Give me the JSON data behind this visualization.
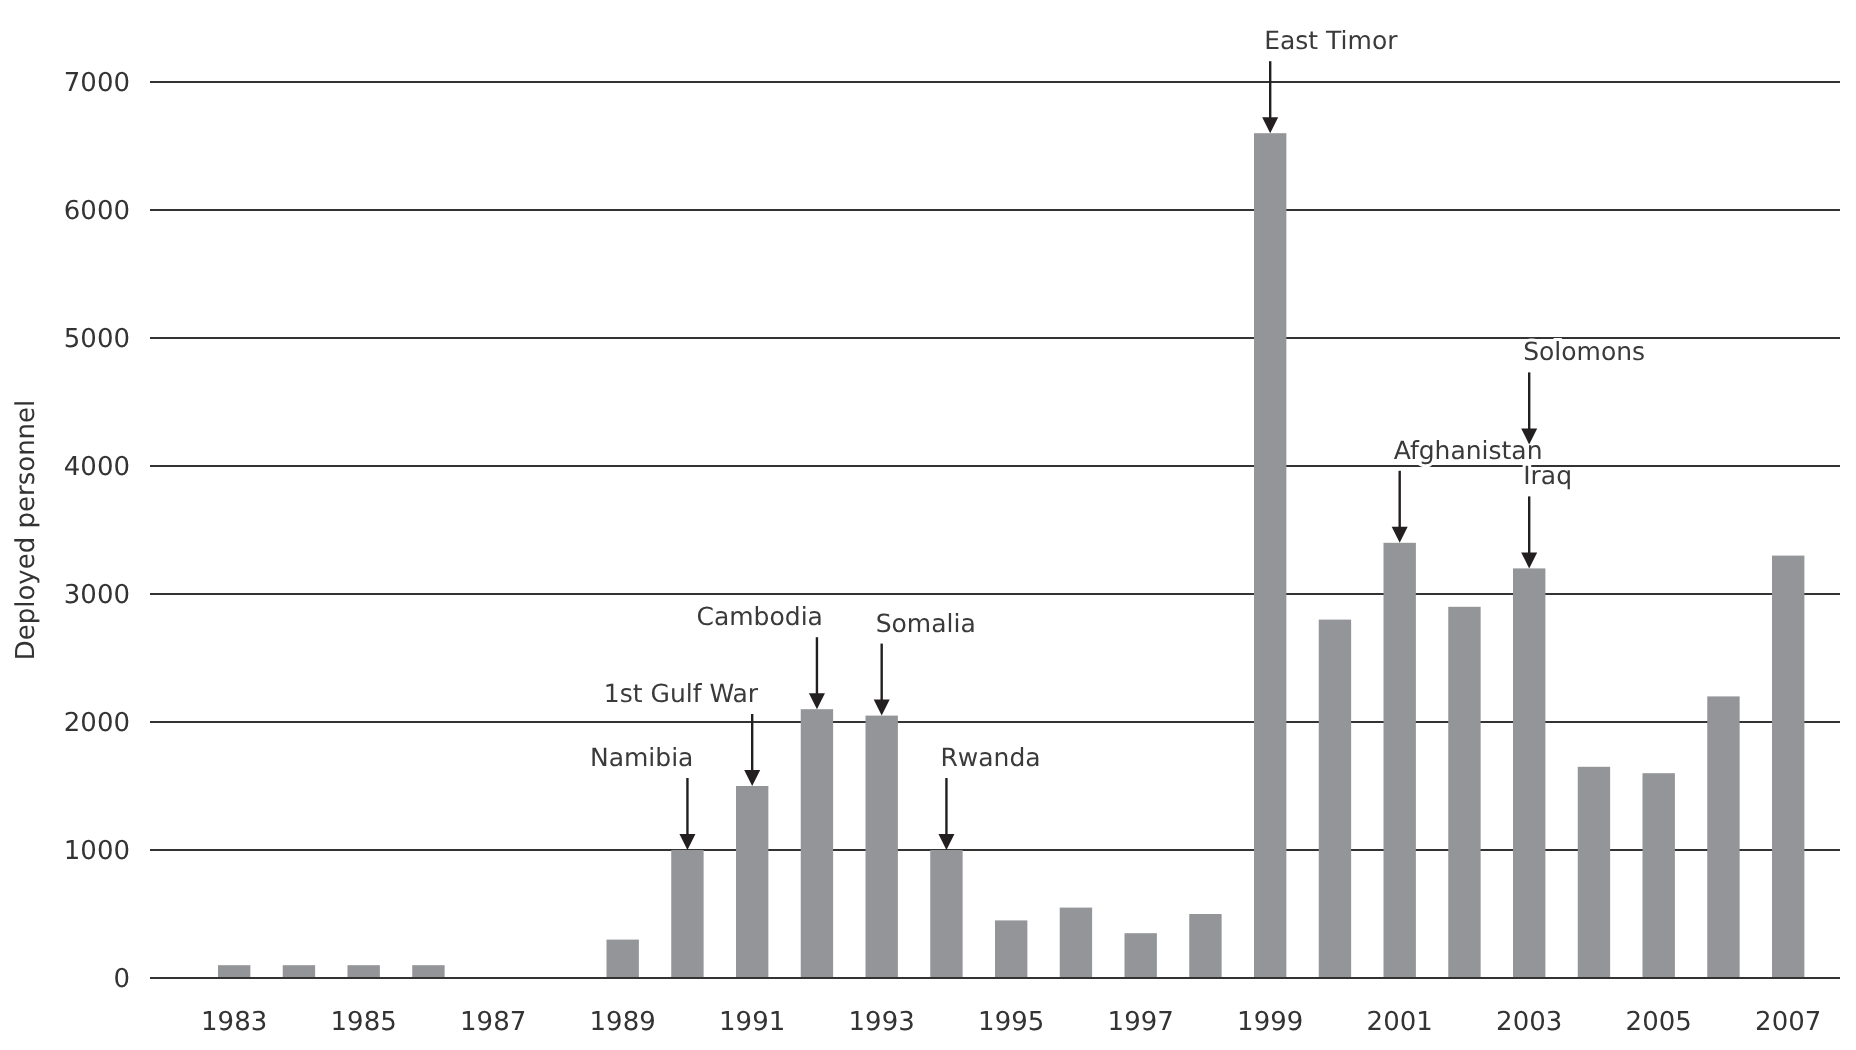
{
  "chart_data": {
    "type": "bar",
    "ylabel": "Deployed personnel",
    "x": [
      1983,
      1984,
      1985,
      1986,
      1987,
      1988,
      1989,
      1990,
      1991,
      1992,
      1993,
      1994,
      1995,
      1996,
      1997,
      1998,
      1999,
      2000,
      2001,
      2002,
      2003,
      2004,
      2005,
      2006,
      2007
    ],
    "values": [
      100,
      100,
      100,
      100,
      0,
      0,
      300,
      1000,
      1500,
      2100,
      2050,
      1000,
      450,
      550,
      350,
      500,
      6600,
      2800,
      3400,
      2900,
      3200,
      1650,
      1600,
      2200,
      3300
    ],
    "color": "#939598",
    "xlim": [
      1981.7,
      2007.8
    ],
    "xticks": [
      1983,
      1985,
      1987,
      1989,
      1991,
      1993,
      1995,
      1997,
      1999,
      2001,
      2003,
      2005,
      2007
    ],
    "ylim": [
      0,
      7000
    ],
    "yticks": [
      0,
      1000,
      2000,
      3000,
      4000,
      5000,
      6000,
      7000
    ],
    "grid": "y",
    "annotations": [
      {
        "text": "Namibia",
        "x": 1990,
        "y": 1000
      },
      {
        "text": "1st Gulf War",
        "x": 1991,
        "y": 1500
      },
      {
        "text": "Cambodia",
        "x": 1992,
        "y": 2100
      },
      {
        "text": "Somalia",
        "x": 1993,
        "y": 2050
      },
      {
        "text": "Rwanda",
        "x": 1994,
        "y": 1000
      },
      {
        "text": "East Timor",
        "x": 1999,
        "y": 6600
      },
      {
        "text": "Afghanistan",
        "x": 2001,
        "y": 3400
      },
      {
        "text": "Iraq",
        "x": 2003,
        "y": 3200
      },
      "Solomons"
    ]
  }
}
